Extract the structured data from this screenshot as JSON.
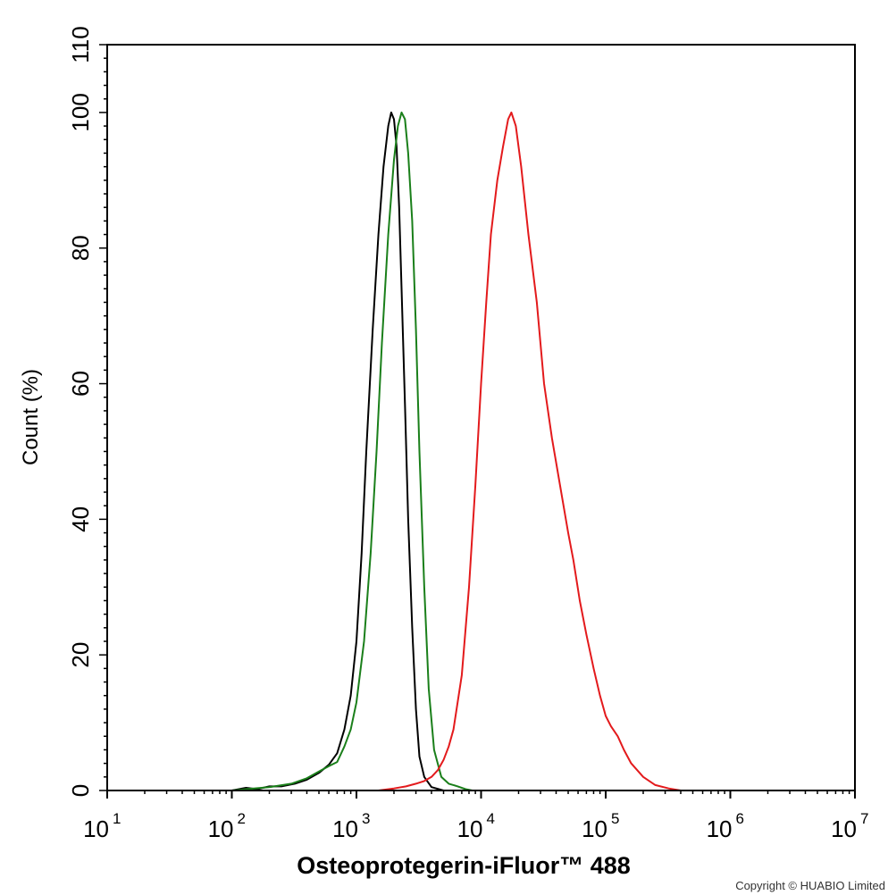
{
  "chart_data": {
    "type": "line",
    "xscale": "log",
    "xlim": [
      10,
      10000000
    ],
    "ylim": [
      0,
      110
    ],
    "xlabel": "Osteoprotegerin-iFluor™ 488",
    "ylabel": "Count  (%)",
    "grid": false,
    "legend": "none",
    "x_ticks": [
      {
        "base": "10",
        "exp": "1",
        "value": 10
      },
      {
        "base": "10",
        "exp": "2",
        "value": 100
      },
      {
        "base": "10",
        "exp": "3",
        "value": 1000
      },
      {
        "base": "10",
        "exp": "4",
        "value": 10000
      },
      {
        "base": "10",
        "exp": "5",
        "value": 100000
      },
      {
        "base": "10",
        "exp": "6",
        "value": 1000000
      },
      {
        "base": "10",
        "exp": "7",
        "value": 10000000
      }
    ],
    "y_ticks": [
      "0",
      "20",
      "40",
      "60",
      "80",
      "100",
      "110"
    ],
    "series": [
      {
        "color": "#000000",
        "points": [
          [
            100,
            0
          ],
          [
            130,
            0.4
          ],
          [
            160,
            0.2
          ],
          [
            200,
            0.6
          ],
          [
            250,
            0.6
          ],
          [
            320,
            1.0
          ],
          [
            400,
            1.6
          ],
          [
            500,
            2.6
          ],
          [
            600,
            3.8
          ],
          [
            700,
            5.5
          ],
          [
            800,
            9
          ],
          [
            900,
            14
          ],
          [
            1000,
            22
          ],
          [
            1100,
            35
          ],
          [
            1200,
            50
          ],
          [
            1350,
            68
          ],
          [
            1500,
            82
          ],
          [
            1650,
            92
          ],
          [
            1800,
            98
          ],
          [
            1900,
            100
          ],
          [
            2000,
            99
          ],
          [
            2100,
            95
          ],
          [
            2200,
            86
          ],
          [
            2300,
            74
          ],
          [
            2450,
            57
          ],
          [
            2600,
            40
          ],
          [
            2800,
            24
          ],
          [
            3000,
            12
          ],
          [
            3200,
            5
          ],
          [
            3500,
            2
          ],
          [
            4000,
            0.5
          ],
          [
            5000,
            0
          ]
        ]
      },
      {
        "color": "#1a7f1a",
        "points": [
          [
            100,
            0
          ],
          [
            150,
            0.3
          ],
          [
            200,
            0.5
          ],
          [
            300,
            1.0
          ],
          [
            400,
            1.8
          ],
          [
            500,
            2.8
          ],
          [
            600,
            3.6
          ],
          [
            700,
            4.2
          ],
          [
            800,
            6.5
          ],
          [
            900,
            9
          ],
          [
            1000,
            13
          ],
          [
            1150,
            22
          ],
          [
            1300,
            35
          ],
          [
            1450,
            50
          ],
          [
            1600,
            66
          ],
          [
            1800,
            82
          ],
          [
            2000,
            93
          ],
          [
            2150,
            98
          ],
          [
            2300,
            100
          ],
          [
            2450,
            99
          ],
          [
            2600,
            94
          ],
          [
            2800,
            84
          ],
          [
            3000,
            68
          ],
          [
            3200,
            50
          ],
          [
            3500,
            30
          ],
          [
            3800,
            15
          ],
          [
            4200,
            6
          ],
          [
            4800,
            2.0
          ],
          [
            5500,
            1.0
          ],
          [
            6500,
            0.6
          ],
          [
            7500,
            0.2
          ],
          [
            8500,
            0
          ]
        ]
      },
      {
        "color": "#e31a1c",
        "points": [
          [
            1500,
            0
          ],
          [
            2000,
            0.3
          ],
          [
            2500,
            0.6
          ],
          [
            3000,
            1.0
          ],
          [
            3500,
            1.4
          ],
          [
            4000,
            2.0
          ],
          [
            4500,
            3.0
          ],
          [
            5000,
            4.5
          ],
          [
            5500,
            6.5
          ],
          [
            6000,
            9
          ],
          [
            7000,
            17
          ],
          [
            8000,
            30
          ],
          [
            9000,
            45
          ],
          [
            10000,
            60
          ],
          [
            11000,
            72
          ],
          [
            12000,
            82
          ],
          [
            13500,
            90
          ],
          [
            15000,
            95
          ],
          [
            16500,
            99
          ],
          [
            17500,
            100
          ],
          [
            19000,
            98
          ],
          [
            21000,
            92
          ],
          [
            24000,
            82
          ],
          [
            28000,
            72
          ],
          [
            32000,
            60
          ],
          [
            37000,
            52
          ],
          [
            43000,
            45
          ],
          [
            50000,
            38
          ],
          [
            55000,
            34
          ],
          [
            62000,
            28
          ],
          [
            70000,
            23
          ],
          [
            80000,
            18
          ],
          [
            90000,
            14
          ],
          [
            100000,
            11
          ],
          [
            110000,
            9.5
          ],
          [
            125000,
            8
          ],
          [
            140000,
            6
          ],
          [
            160000,
            4
          ],
          [
            200000,
            2
          ],
          [
            250000,
            0.8
          ],
          [
            320000,
            0.3
          ],
          [
            400000,
            0
          ]
        ]
      }
    ]
  },
  "copyright": "Copyright © HUABIO Limited"
}
